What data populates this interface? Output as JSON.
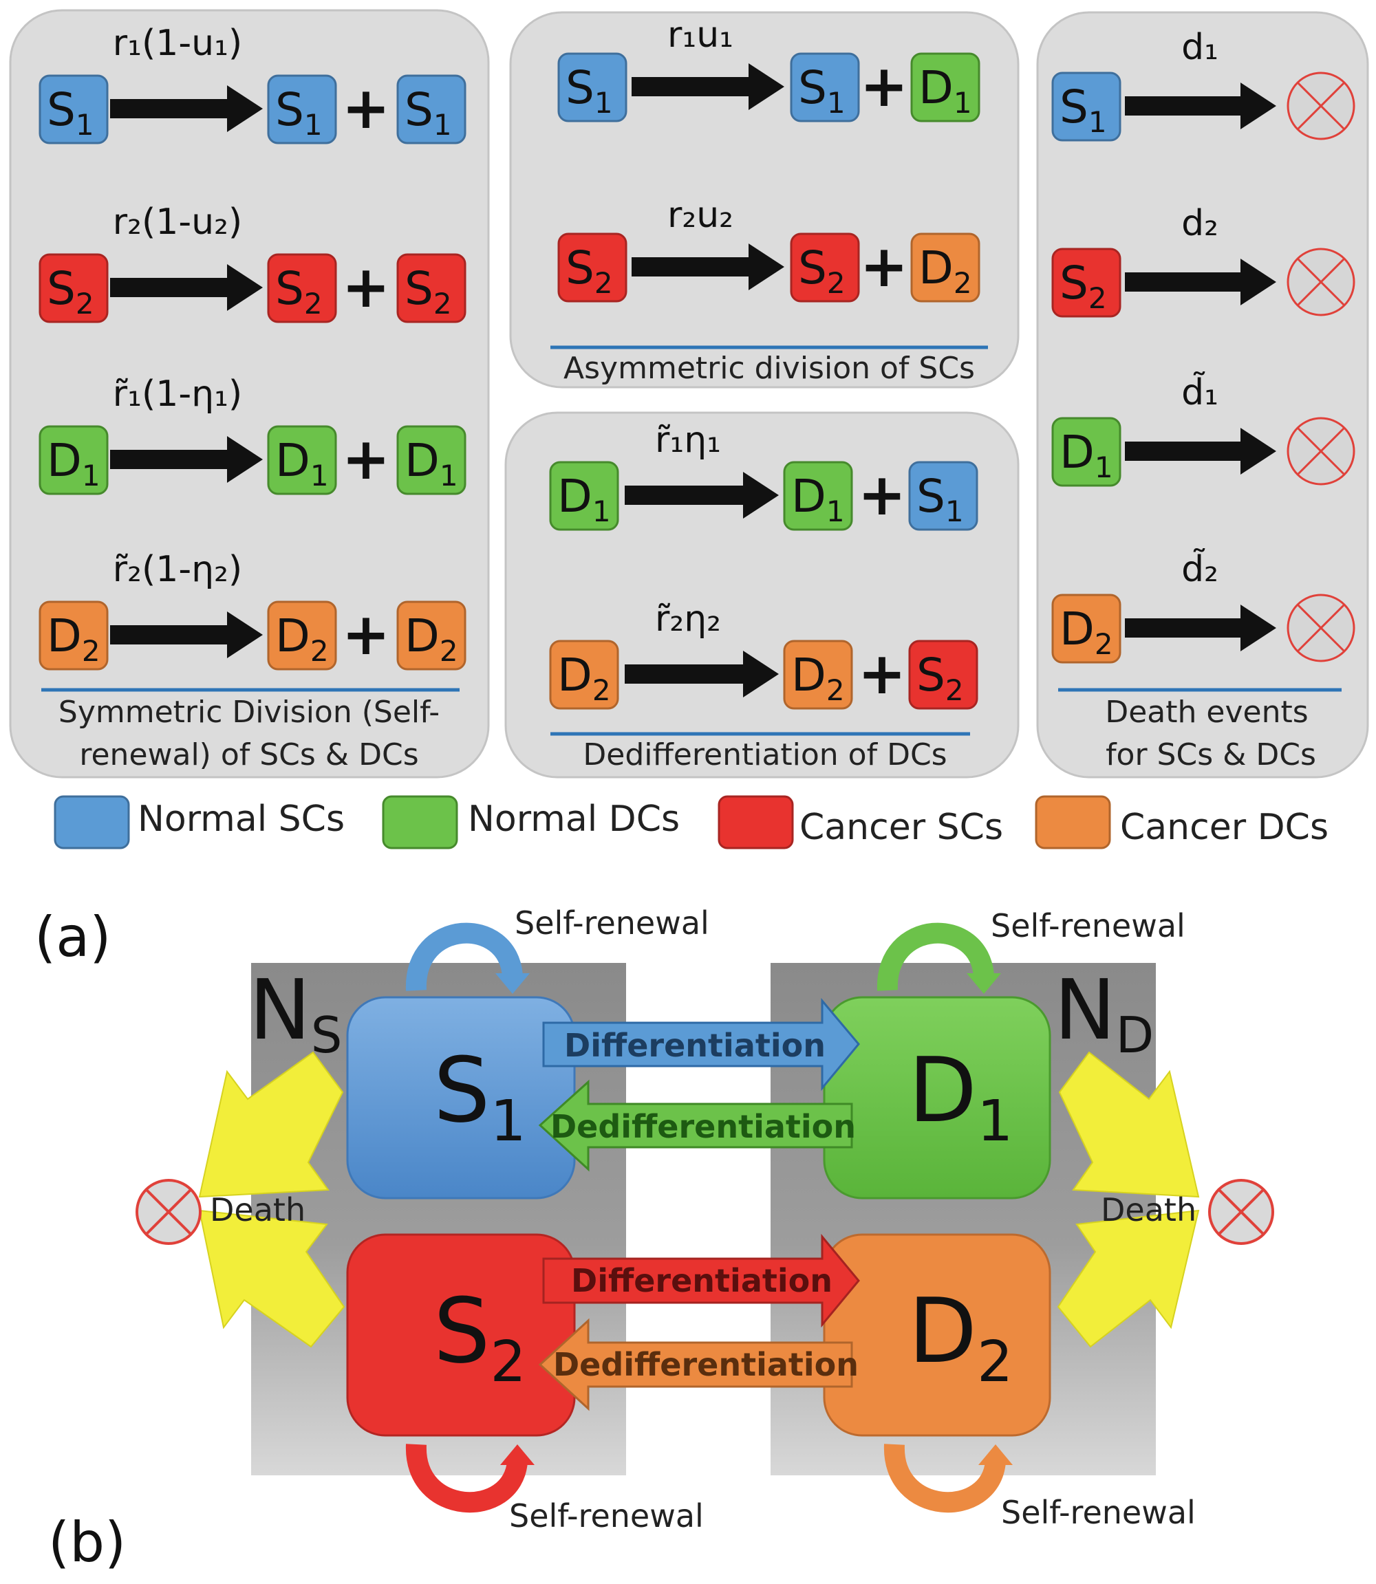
{
  "colors": {
    "normal_sc": "#5b9bd5",
    "normal_dc": "#6cc24a",
    "cancer_sc": "#e8332f",
    "cancer_dc": "#ec8a41",
    "panel_bg": "#dcdcdc",
    "divider": "#2e75b6",
    "death_yellow": "#f2ee3a"
  },
  "cells": {
    "s1_main": "S",
    "s1_sub": "1",
    "s2_main": "S",
    "s2_sub": "2",
    "d1_main": "D",
    "d1_sub": "1",
    "d2_main": "D",
    "d2_sub": "2"
  },
  "plus": "+",
  "panel_a": {
    "letter": "(a)",
    "symmetric": {
      "rates": [
        "r₁(1-u₁)",
        "r₂(1-u₂)",
        "r̃₁(1-η₁)",
        "r̃₂(1-η₂)"
      ],
      "caption_line1": "Symmetric Division (Self-",
      "caption_line2": "renewal) of SCs & DCs"
    },
    "asymmetric": {
      "rates": [
        "r₁u₁",
        "r₂u₂"
      ],
      "caption": "Asymmetric division of SCs"
    },
    "dedifferentiation": {
      "rates": [
        "r̃₁η₁",
        "r̃₂η₂"
      ],
      "caption": "Dedifferentiation of DCs"
    },
    "death": {
      "rates": [
        "d₁",
        "d₂",
        "d̃₁",
        "d̃₂"
      ],
      "caption_line1": "Death events",
      "caption_line2": "for SCs & DCs"
    },
    "legend": [
      {
        "label": "Normal SCs",
        "color": "#5b9bd5"
      },
      {
        "label": "Normal DCs",
        "color": "#6cc24a"
      },
      {
        "label": "Cancer SCs",
        "color": "#e8332f"
      },
      {
        "label": "Cancer DCs",
        "color": "#ec8a41"
      }
    ]
  },
  "panel_b": {
    "letter": "(b)",
    "ns_main": "N",
    "ns_sub": "S",
    "nd_main": "N",
    "nd_sub": "D",
    "self_renewal": "Self-renewal",
    "differentiation": "Differentiation",
    "dedifferentiation": "Dedifferentiation",
    "death": "Death"
  }
}
